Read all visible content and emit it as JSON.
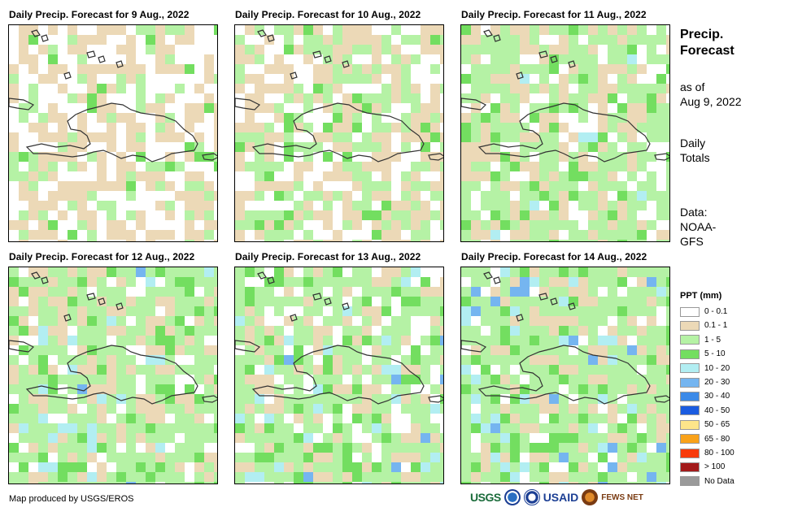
{
  "panels": [
    {
      "title": "Daily Precip. Forecast for 9 Aug., 2022",
      "seed": 9
    },
    {
      "title": "Daily Precip. Forecast for 10 Aug., 2022",
      "seed": 10
    },
    {
      "title": "Daily Precip. Forecast for 11 Aug., 2022",
      "seed": 11
    },
    {
      "title": "Daily Precip. Forecast for 12 Aug., 2022",
      "seed": 12
    },
    {
      "title": "Daily Precip. Forecast for 13 Aug., 2022",
      "seed": 13
    },
    {
      "title": "Daily Precip. Forecast for 14 Aug., 2022",
      "seed": 14
    }
  ],
  "side": {
    "title_line1": "Precip.",
    "title_line2": "Forecast",
    "asof_line1": "as of",
    "asof_line2": "Aug 9, 2022",
    "totals_line1": "Daily",
    "totals_line2": "Totals",
    "data_line1": "Data:",
    "data_line2": "NOAA-",
    "data_line3": "GFS"
  },
  "legend": {
    "title": "PPT (mm)",
    "items": [
      {
        "label": "0 - 0.1",
        "color": "#ffffff"
      },
      {
        "label": "0.1 - 1",
        "color": "#ecd9b7"
      },
      {
        "label": "1 - 5",
        "color": "#b5f2a5"
      },
      {
        "label": "5 - 10",
        "color": "#73de60"
      },
      {
        "label": "10 - 20",
        "color": "#b2eef2"
      },
      {
        "label": "20 - 30",
        "color": "#75b5f0"
      },
      {
        "label": "30 - 40",
        "color": "#3c8ae8"
      },
      {
        "label": "40 - 50",
        "color": "#1b5ce0"
      },
      {
        "label": "50 - 65",
        "color": "#fde58a"
      },
      {
        "label": "65 - 80",
        "color": "#f9a21a"
      },
      {
        "label": "80 - 100",
        "color": "#f83a0a"
      },
      {
        "label": "> 100",
        "color": "#a31a1a"
      },
      {
        "label": "No Data",
        "color": "#9a9a9a"
      }
    ]
  },
  "credit": "Map produced by USGS/EROS",
  "logos": {
    "usgs": "USGS",
    "usaid": "USAID",
    "fews": "FEWS NET"
  }
}
